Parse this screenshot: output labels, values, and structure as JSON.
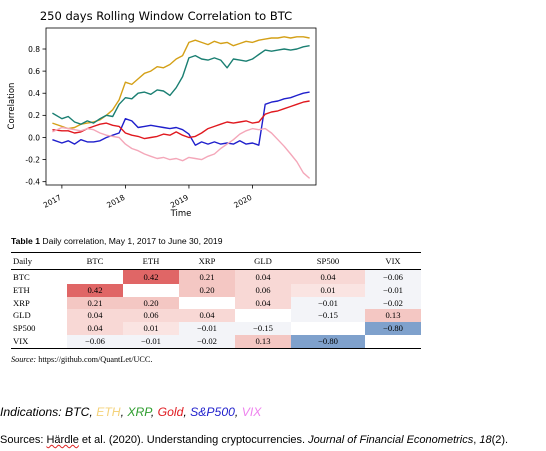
{
  "chart_data": {
    "type": "line",
    "title": "250 days Rolling Window Correlation to BTC",
    "xlabel": "Time",
    "ylabel": "Correlation",
    "xlim": [
      2016.75,
      2021.0
    ],
    "ylim": [
      -0.43,
      0.99
    ],
    "x_ticks": [
      "2017",
      "2018",
      "2019",
      "2020"
    ],
    "y_ticks": [
      "-0.4",
      "-0.2",
      "0.0",
      "0.2",
      "0.4",
      "0.6",
      "0.8"
    ],
    "grid": false,
    "series": [
      {
        "color": "#d4a017",
        "x": [
          2016.85,
          2017.0,
          2017.1,
          2017.2,
          2017.3,
          2017.4,
          2017.5,
          2017.6,
          2017.7,
          2017.8,
          2017.9,
          2018.0,
          2018.1,
          2018.2,
          2018.3,
          2018.4,
          2018.5,
          2018.6,
          2018.7,
          2018.8,
          2018.9,
          2019.0,
          2019.1,
          2019.2,
          2019.3,
          2019.4,
          2019.5,
          2019.6,
          2019.7,
          2019.8,
          2019.9,
          2020.0,
          2020.1,
          2020.2,
          2020.3,
          2020.4,
          2020.5,
          2020.6,
          2020.7,
          2020.8,
          2020.9
        ],
        "y": [
          0.13,
          0.1,
          0.08,
          0.09,
          0.12,
          0.13,
          0.14,
          0.16,
          0.2,
          0.25,
          0.34,
          0.5,
          0.48,
          0.53,
          0.58,
          0.6,
          0.64,
          0.63,
          0.66,
          0.71,
          0.74,
          0.86,
          0.88,
          0.86,
          0.84,
          0.87,
          0.85,
          0.86,
          0.83,
          0.85,
          0.87,
          0.86,
          0.88,
          0.89,
          0.9,
          0.9,
          0.91,
          0.9,
          0.91,
          0.91,
          0.9
        ]
      },
      {
        "color": "#1a7f72",
        "x": [
          2016.85,
          2017.0,
          2017.1,
          2017.2,
          2017.3,
          2017.4,
          2017.5,
          2017.6,
          2017.7,
          2017.8,
          2017.9,
          2018.0,
          2018.1,
          2018.2,
          2018.3,
          2018.4,
          2018.5,
          2018.6,
          2018.7,
          2018.8,
          2018.9,
          2019.0,
          2019.1,
          2019.2,
          2019.3,
          2019.4,
          2019.5,
          2019.6,
          2019.7,
          2019.8,
          2019.9,
          2020.0,
          2020.1,
          2020.2,
          2020.3,
          2020.4,
          2020.5,
          2020.6,
          2020.7,
          2020.8,
          2020.9
        ],
        "y": [
          0.22,
          0.17,
          0.19,
          0.14,
          0.12,
          0.15,
          0.13,
          0.17,
          0.2,
          0.19,
          0.3,
          0.36,
          0.35,
          0.4,
          0.41,
          0.39,
          0.43,
          0.42,
          0.38,
          0.45,
          0.55,
          0.72,
          0.74,
          0.71,
          0.7,
          0.72,
          0.7,
          0.63,
          0.71,
          0.7,
          0.69,
          0.71,
          0.75,
          0.79,
          0.78,
          0.79,
          0.8,
          0.79,
          0.8,
          0.82,
          0.83
        ]
      },
      {
        "color": "#1f1fcc",
        "x": [
          2016.85,
          2017.0,
          2017.1,
          2017.2,
          2017.3,
          2017.4,
          2017.5,
          2017.6,
          2017.7,
          2017.8,
          2017.9,
          2018.0,
          2018.1,
          2018.2,
          2018.3,
          2018.4,
          2018.5,
          2018.6,
          2018.7,
          2018.8,
          2018.9,
          2019.0,
          2019.1,
          2019.2,
          2019.3,
          2019.4,
          2019.5,
          2019.6,
          2019.7,
          2019.8,
          2019.9,
          2020.0,
          2020.1,
          2020.2,
          2020.3,
          2020.4,
          2020.5,
          2020.6,
          2020.7,
          2020.8,
          2020.9
        ],
        "y": [
          -0.02,
          -0.05,
          -0.03,
          -0.06,
          -0.02,
          -0.04,
          -0.04,
          -0.03,
          0.0,
          0.02,
          0.04,
          0.17,
          0.15,
          0.09,
          0.1,
          0.11,
          0.1,
          0.09,
          0.08,
          0.09,
          0.07,
          0.03,
          -0.07,
          -0.04,
          -0.06,
          -0.04,
          -0.06,
          -0.05,
          -0.06,
          -0.03,
          -0.06,
          -0.05,
          -0.07,
          0.3,
          0.32,
          0.33,
          0.35,
          0.36,
          0.38,
          0.4,
          0.41
        ]
      },
      {
        "color": "#e0191f",
        "x": [
          2016.85,
          2017.0,
          2017.1,
          2017.2,
          2017.3,
          2017.4,
          2017.5,
          2017.6,
          2017.7,
          2017.8,
          2017.9,
          2018.0,
          2018.1,
          2018.2,
          2018.3,
          2018.4,
          2018.5,
          2018.6,
          2018.7,
          2018.8,
          2018.9,
          2019.0,
          2019.1,
          2019.2,
          2019.3,
          2019.4,
          2019.5,
          2019.6,
          2019.7,
          2019.8,
          2019.9,
          2020.0,
          2020.1,
          2020.2,
          2020.3,
          2020.4,
          2020.5,
          2020.6,
          2020.7,
          2020.8,
          2020.9
        ],
        "y": [
          0.07,
          0.06,
          0.06,
          0.04,
          0.05,
          0.08,
          0.1,
          0.12,
          0.13,
          0.11,
          0.1,
          0.04,
          0.02,
          0.01,
          -0.01,
          0.0,
          0.01,
          0.03,
          0.02,
          0.05,
          0.02,
          0.0,
          0.01,
          0.04,
          0.08,
          0.1,
          0.12,
          0.14,
          0.13,
          0.14,
          0.15,
          0.13,
          0.14,
          0.21,
          0.23,
          0.24,
          0.26,
          0.28,
          0.3,
          0.32,
          0.33
        ]
      },
      {
        "color": "#f4a7b9",
        "x": [
          2016.85,
          2017.0,
          2017.1,
          2017.2,
          2017.3,
          2017.4,
          2017.5,
          2017.6,
          2017.7,
          2017.8,
          2017.9,
          2018.0,
          2018.1,
          2018.2,
          2018.3,
          2018.4,
          2018.5,
          2018.6,
          2018.7,
          2018.8,
          2018.9,
          2019.0,
          2019.1,
          2019.2,
          2019.3,
          2019.4,
          2019.5,
          2019.6,
          2019.7,
          2019.8,
          2019.9,
          2020.0,
          2020.1,
          2020.2,
          2020.3,
          2020.4,
          2020.5,
          2020.6,
          2020.7,
          2020.8,
          2020.9
        ],
        "y": [
          0.05,
          0.09,
          0.08,
          0.07,
          0.06,
          0.08,
          0.07,
          0.04,
          0.02,
          0.01,
          0.0,
          -0.06,
          -0.1,
          -0.12,
          -0.15,
          -0.17,
          -0.19,
          -0.18,
          -0.2,
          -0.19,
          -0.21,
          -0.18,
          -0.19,
          -0.2,
          -0.17,
          -0.15,
          -0.1,
          -0.06,
          -0.02,
          0.03,
          0.06,
          0.08,
          0.07,
          0.08,
          0.04,
          -0.02,
          -0.08,
          -0.15,
          -0.22,
          -0.32,
          -0.37
        ]
      }
    ]
  },
  "table": {
    "caption_bold": "Table 1",
    "caption_rest": " Daily correlation, May 1, 2017 to June 30, 2019",
    "headers": [
      "Daily",
      "BTC",
      "ETH",
      "XRP",
      "GLD",
      "SP500",
      "VIX"
    ],
    "rows": [
      {
        "label": "BTC",
        "cells": [
          "",
          "0.42",
          "0.21",
          "0.04",
          "0.04",
          "−0.06"
        ]
      },
      {
        "label": "ETH",
        "cells": [
          "0.42",
          "",
          "0.20",
          "0.06",
          "0.01",
          "−0.01"
        ]
      },
      {
        "label": "XRP",
        "cells": [
          "0.21",
          "0.20",
          "",
          "0.04",
          "−0.01",
          "−0.02"
        ]
      },
      {
        "label": "GLD",
        "cells": [
          "0.04",
          "0.06",
          "0.04",
          "",
          "−0.15",
          "0.13"
        ]
      },
      {
        "label": "SP500",
        "cells": [
          "0.04",
          "0.01",
          "−0.01",
          "−0.15",
          "",
          "−0.80"
        ]
      },
      {
        "label": "VIX",
        "cells": [
          "−0.06",
          "−0.01",
          "−0.02",
          "0.13",
          "−0.80",
          ""
        ]
      }
    ],
    "source_label": "Source:",
    "source_url": " https://github.com/QuantLet/UCC."
  },
  "indications": {
    "prefix": "Indications: ",
    "items": [
      {
        "text": "BTC",
        "color": "#000000"
      },
      {
        "text": "ETH",
        "color": "#f4d27a"
      },
      {
        "text": "XRP",
        "color": "#2e9d2e"
      },
      {
        "text": "Gold",
        "color": "#e0191f"
      },
      {
        "text": "S&P500",
        "color": "#1f1fcc"
      },
      {
        "text": "VIX",
        "color": "#ee82ee"
      }
    ]
  },
  "sources": {
    "prefix": "Sources: ",
    "author": "Härdle",
    "middle": " et al. (2020). Understanding cryptocurrencies. ",
    "journal": "Journal of Financial Econometrics",
    "volume": "18",
    "issue": "(2)."
  }
}
